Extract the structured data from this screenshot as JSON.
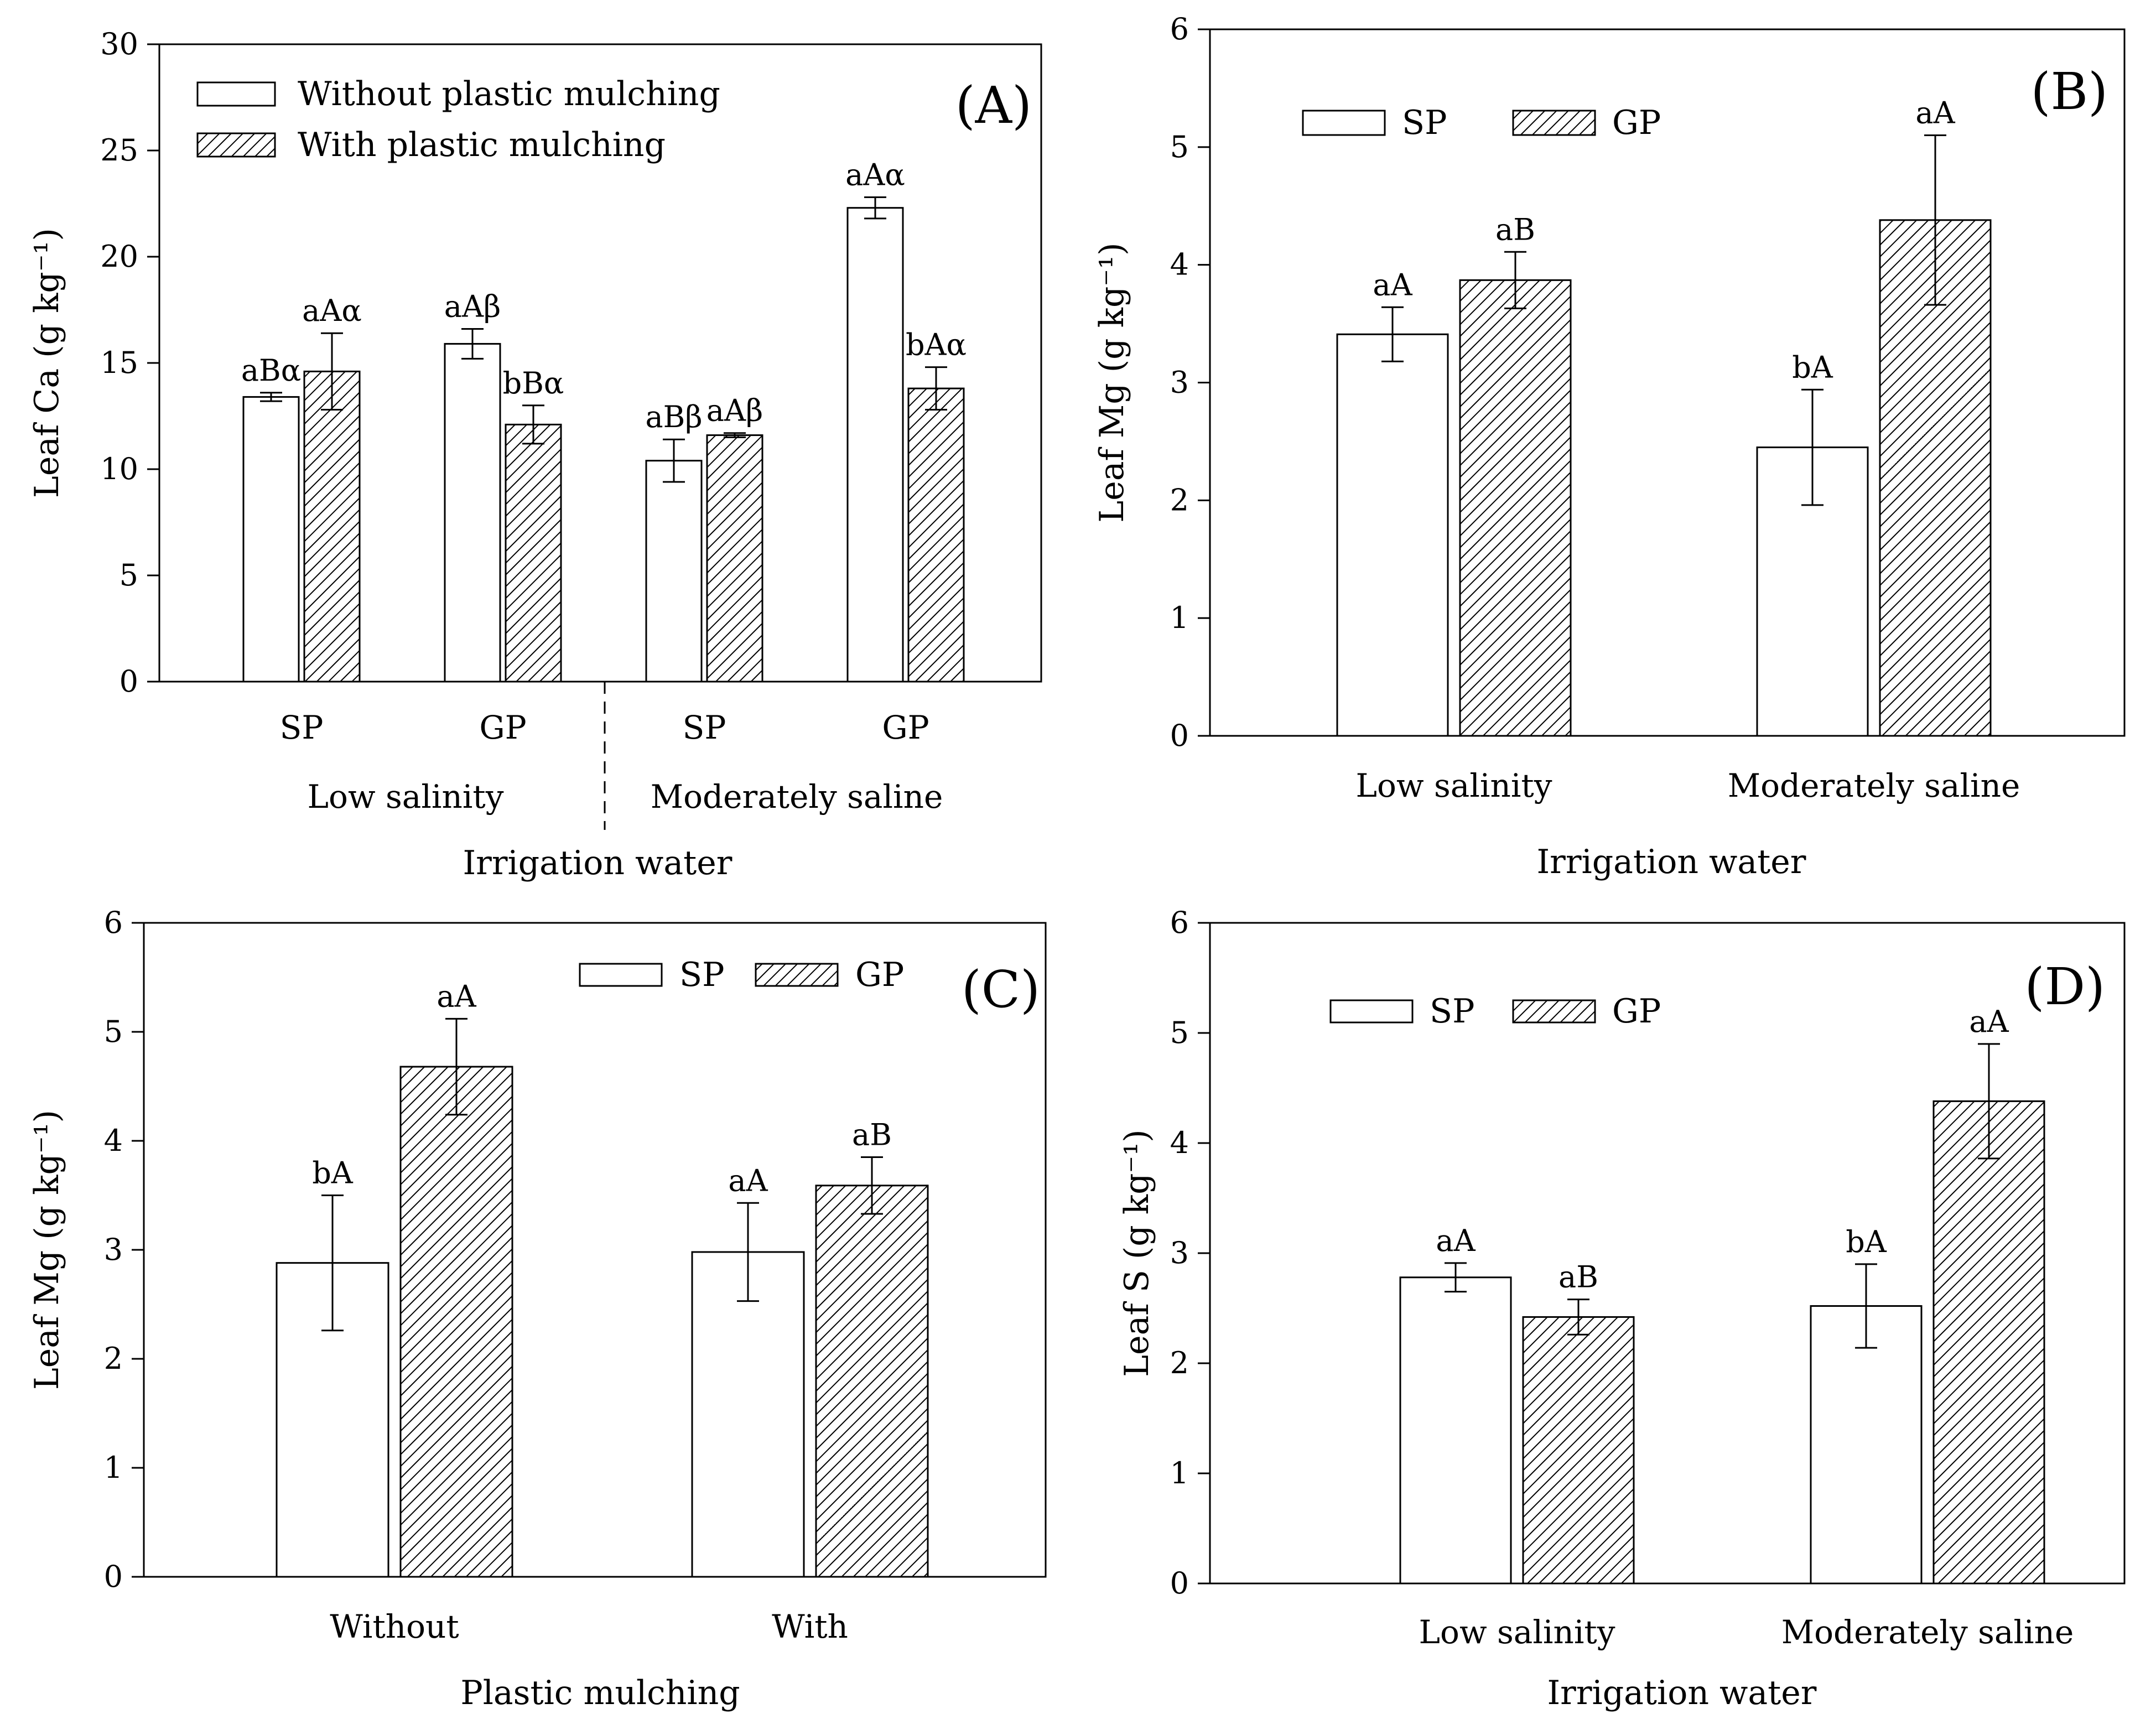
{
  "chart_data": [
    {
      "panel": "(A)",
      "type": "bar",
      "ylabel": "Leaf Ca (g kg⁻¹)",
      "xlabel": "Irrigation water",
      "ylim": [
        0,
        30
      ],
      "yticks": [
        0,
        5,
        10,
        15,
        20,
        25,
        30
      ],
      "categories": [
        "SP",
        "GP",
        "SP",
        "GP"
      ],
      "groups": [
        {
          "label": "Low salinity",
          "categories": [
            "SP",
            "GP"
          ]
        },
        {
          "label": "Moderately saline",
          "categories": [
            "SP",
            "GP"
          ]
        }
      ],
      "legend_position": "top-left",
      "series": [
        {
          "name": "Without plastic mulching",
          "pattern": "none",
          "values": [
            13.4,
            15.9,
            10.4,
            22.3
          ],
          "errors": [
            0.2,
            0.7,
            1.0,
            0.5
          ],
          "labels": [
            "aBα",
            "aAβ",
            "aBβ",
            "aAα"
          ]
        },
        {
          "name": "With plastic mulching",
          "pattern": "hatch",
          "values": [
            14.6,
            12.1,
            11.6,
            13.8
          ],
          "errors": [
            1.8,
            0.9,
            0.1,
            1.0
          ],
          "labels": [
            "aAα",
            "bBα",
            "aAβ",
            "bAα"
          ]
        }
      ]
    },
    {
      "panel": "(B)",
      "type": "bar",
      "ylabel": "Leaf Mg (g kg⁻¹)",
      "xlabel": "Irrigation water",
      "ylim": [
        0,
        6
      ],
      "yticks": [
        0,
        1,
        2,
        3,
        4,
        5,
        6
      ],
      "categories": [
        "Low salinity",
        "Moderately saline"
      ],
      "legend_position": "top-left",
      "series": [
        {
          "name": "SP",
          "pattern": "none",
          "values": [
            3.41,
            2.45
          ],
          "errors": [
            0.23,
            0.49
          ],
          "labels": [
            "aA",
            "bA"
          ]
        },
        {
          "name": "GP",
          "pattern": "hatch",
          "values": [
            3.87,
            4.38
          ],
          "errors": [
            0.24,
            0.72
          ],
          "labels": [
            "aB",
            "aA"
          ]
        }
      ]
    },
    {
      "panel": "(C)",
      "type": "bar",
      "ylabel": "Leaf Mg (g kg⁻¹)",
      "xlabel": "Plastic mulching",
      "ylim": [
        0,
        6
      ],
      "yticks": [
        0,
        1,
        2,
        3,
        4,
        5,
        6
      ],
      "categories": [
        "Without",
        "With"
      ],
      "legend_position": "top-right",
      "series": [
        {
          "name": "SP",
          "pattern": "none",
          "values": [
            2.88,
            2.98
          ],
          "errors": [
            0.62,
            0.45
          ],
          "labels": [
            "bA",
            "aA"
          ]
        },
        {
          "name": "GP",
          "pattern": "hatch",
          "values": [
            4.68,
            3.59
          ],
          "errors": [
            0.44,
            0.26
          ],
          "labels": [
            "aA",
            "aB"
          ]
        }
      ]
    },
    {
      "panel": "(D)",
      "type": "bar",
      "ylabel": "Leaf S (g kg⁻¹)",
      "xlabel": "Irrigation water",
      "ylim": [
        0,
        6
      ],
      "yticks": [
        0,
        1,
        2,
        3,
        4,
        5,
        6
      ],
      "categories": [
        "Low salinity",
        "Moderately saline"
      ],
      "legend_position": "top-left",
      "series": [
        {
          "name": "SP",
          "pattern": "none",
          "values": [
            2.78,
            2.52
          ],
          "errors": [
            0.13,
            0.38
          ],
          "labels": [
            "aA",
            "bA"
          ]
        },
        {
          "name": "GP",
          "pattern": "hatch",
          "values": [
            2.42,
            4.38
          ],
          "errors": [
            0.16,
            0.52
          ],
          "labels": [
            "aB",
            "aA"
          ]
        }
      ]
    }
  ]
}
